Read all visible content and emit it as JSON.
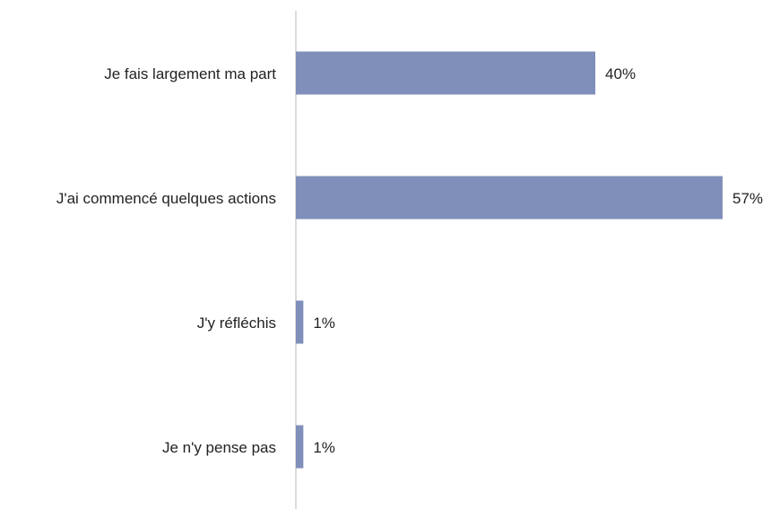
{
  "chart_data": {
    "type": "bar",
    "orientation": "horizontal",
    "categories": [
      "Je fais largement ma part",
      "J'ai commencé quelques actions",
      "J'y réfléchis",
      "Je n'y pense pas"
    ],
    "values": [
      40,
      57,
      1,
      1
    ],
    "value_labels": [
      "40%",
      "57%",
      "1%",
      "1%"
    ],
    "color": "#7f8fba"
  }
}
